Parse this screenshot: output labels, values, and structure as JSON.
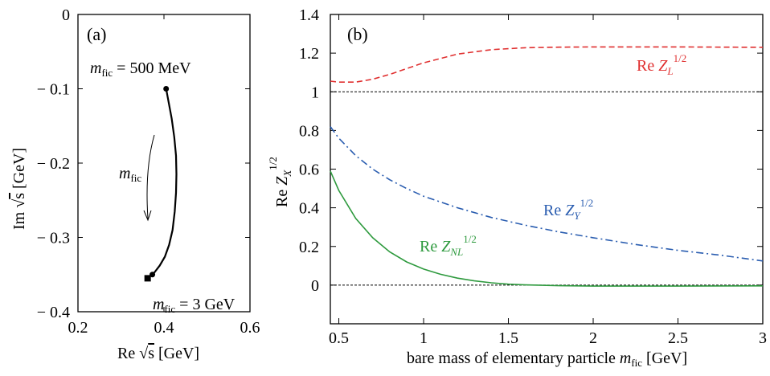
{
  "chart_data": [
    {
      "panel": "(a)",
      "type": "line",
      "xlabel_prefix": "Re",
      "xlabel_sqrt": "s",
      "xlabel_unit": "[GeV]",
      "ylabel_prefix": "Im",
      "ylabel_sqrt": "s",
      "ylabel_unit": "[GeV]",
      "xlim": [
        0.2,
        0.6
      ],
      "ylim": [
        -0.4,
        0
      ],
      "x_ticks": [
        0.2,
        0.4,
        0.6
      ],
      "x_tick_labels": [
        "0.2",
        "0.4",
        "0.6"
      ],
      "y_ticks": [
        0,
        -0.1,
        -0.2,
        -0.3,
        -0.4
      ],
      "y_tick_labels": [
        "0",
        "− 0.1",
        "− 0.2",
        "− 0.3",
        "− 0.4"
      ],
      "series": [
        {
          "color": "#000000",
          "x": [
            0.405,
            0.41,
            0.418,
            0.424,
            0.428,
            0.429,
            0.428,
            0.425,
            0.42,
            0.412,
            0.402,
            0.39,
            0.378,
            0.372
          ],
          "y": [
            -0.1,
            -0.115,
            -0.14,
            -0.165,
            -0.19,
            -0.215,
            -0.24,
            -0.265,
            -0.29,
            -0.31,
            -0.326,
            -0.338,
            -0.347,
            -0.35
          ]
        }
      ],
      "points": [
        {
          "x": 0.405,
          "y": -0.1,
          "marker": "circle"
        },
        {
          "x": 0.373,
          "y": -0.35,
          "marker": "circle"
        },
        {
          "x": 0.362,
          "y": -0.355,
          "marker": "square"
        }
      ],
      "annotations": {
        "top_m": "m",
        "top_sub": "fic",
        "top_value": " = 500 MeV",
        "bottom_m": "m",
        "bottom_sub": "fic",
        "bottom_value": " = 3 GeV",
        "arrow_m": "m",
        "arrow_sub": "fic"
      }
    },
    {
      "panel": "(b)",
      "type": "line",
      "xlabel_text": "bare mass of elementary particle ",
      "xlabel_m": "m",
      "xlabel_sub": "fic",
      "xlabel_unit": " [GeV]",
      "ylabel_prefix": "Re ",
      "ylabel_var": "Z",
      "ylabel_sub": "X",
      "ylabel_sup": "1/2",
      "xlim": [
        0.45,
        3
      ],
      "ylim": [
        -0.2,
        1.4
      ],
      "x_ticks": [
        0.5,
        1,
        1.5,
        2,
        2.5,
        3
      ],
      "x_tick_labels": [
        "0.5",
        "1",
        "1.5",
        "2",
        "2.5",
        "3"
      ],
      "y_ticks": [
        0,
        0.2,
        0.4,
        0.6,
        0.8,
        1,
        1.2,
        1.4
      ],
      "y_tick_labels": [
        "0",
        "0.2",
        "0.4",
        "0.6",
        "0.8",
        "1",
        "1.2",
        "1.4"
      ],
      "reference_lines": [
        1,
        0
      ],
      "series": [
        {
          "label_prefix": "Re ",
          "label_var": "Z",
          "label_sub": "L",
          "label_sup": "1/2",
          "color": "#e03030",
          "dash": "dashed",
          "x": [
            0.45,
            0.5,
            0.6,
            0.7,
            0.8,
            0.9,
            1.0,
            1.2,
            1.4,
            1.6,
            1.8,
            2.0,
            2.5,
            3.0
          ],
          "y": [
            1.055,
            1.05,
            1.05,
            1.065,
            1.09,
            1.12,
            1.15,
            1.195,
            1.218,
            1.228,
            1.231,
            1.232,
            1.232,
            1.23
          ]
        },
        {
          "label_prefix": "Re ",
          "label_var": "Z",
          "label_sub": "Y",
          "label_sup": "1/2",
          "color": "#2a5db0",
          "dash": "dashdot",
          "x": [
            0.45,
            0.5,
            0.6,
            0.7,
            0.8,
            0.9,
            1.0,
            1.2,
            1.4,
            1.6,
            1.8,
            2.0,
            2.25,
            2.5,
            2.75,
            3.0
          ],
          "y": [
            0.82,
            0.76,
            0.67,
            0.6,
            0.545,
            0.5,
            0.46,
            0.4,
            0.35,
            0.31,
            0.275,
            0.245,
            0.21,
            0.18,
            0.155,
            0.125
          ]
        },
        {
          "label_prefix": "Re ",
          "label_var": "Z",
          "label_sub": "NL",
          "label_sup": "1/2",
          "color": "#2e9a3e",
          "dash": "solid",
          "x": [
            0.45,
            0.5,
            0.6,
            0.7,
            0.8,
            0.9,
            1.0,
            1.1,
            1.2,
            1.3,
            1.4,
            1.5,
            1.6,
            1.8,
            2.0,
            2.5,
            3.0
          ],
          "y": [
            0.59,
            0.49,
            0.345,
            0.245,
            0.172,
            0.12,
            0.083,
            0.056,
            0.036,
            0.022,
            0.012,
            0.005,
            0.001,
            -0.003,
            -0.005,
            -0.005,
            -0.004
          ]
        }
      ]
    }
  ]
}
